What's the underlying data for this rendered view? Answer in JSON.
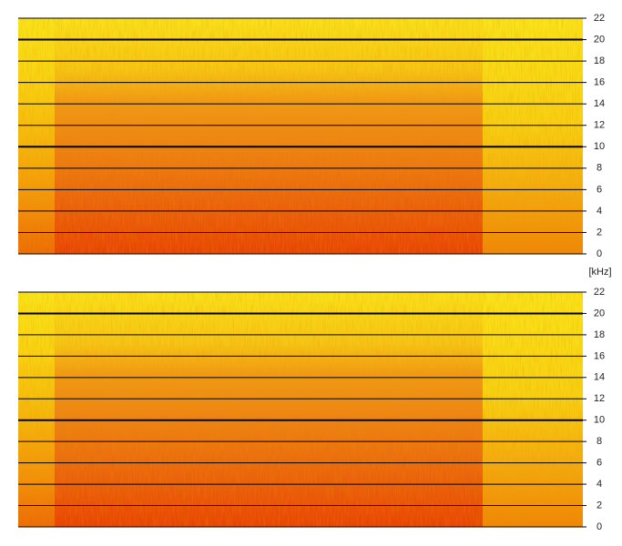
{
  "chart_data": [
    {
      "type": "spectrogram",
      "ylim": [
        0,
        22
      ],
      "yticks": [
        0,
        2,
        4,
        6,
        8,
        10,
        12,
        14,
        16,
        18,
        20,
        22
      ],
      "major_yticks": [
        10,
        20
      ],
      "grid": true,
      "y_label": "[kHz]"
    },
    {
      "type": "spectrogram",
      "ylim": [
        0,
        22
      ],
      "yticks": [
        0,
        2,
        4,
        6,
        8,
        10,
        12,
        14,
        16,
        18,
        20,
        22
      ],
      "major_yticks": [
        10,
        20
      ],
      "grid": true
    }
  ]
}
